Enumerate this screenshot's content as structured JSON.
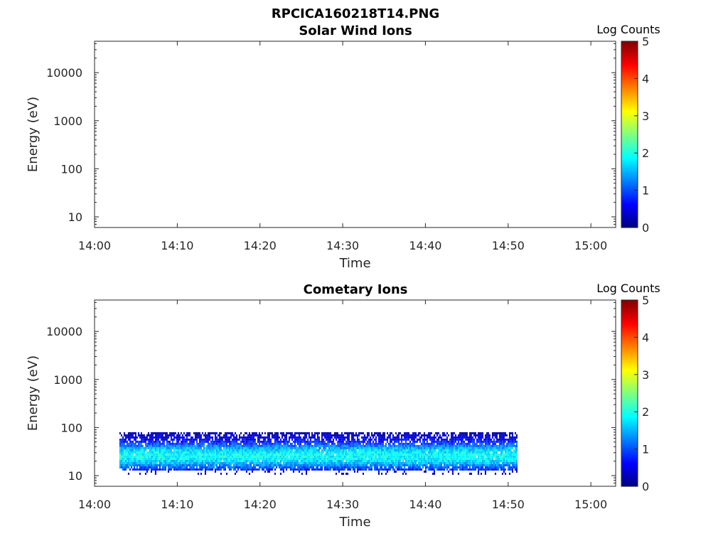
{
  "figure": {
    "title": "RPCICA160218T14.PNG"
  },
  "chart_data": [
    {
      "type": "heatmap",
      "title": "Solar Wind Ions",
      "xlabel": "Time",
      "ylabel": "Energy (eV)",
      "xlim": [
        "14:00",
        "15:03"
      ],
      "xticks": [
        "14:00",
        "14:10",
        "14:20",
        "14:30",
        "14:40",
        "14:50",
        "15:00"
      ],
      "yscale": "log",
      "ylim": [
        6,
        45000
      ],
      "yticks": [
        "10",
        "100",
        "1000",
        "10000"
      ],
      "colorbar": {
        "label": "Log Counts",
        "range": [
          0,
          5
        ],
        "ticks": [
          "0",
          "1",
          "2",
          "3",
          "4",
          "5"
        ],
        "colormap": "jet"
      },
      "data": []
    },
    {
      "type": "heatmap",
      "title": "Cometary Ions",
      "xlabel": "Time",
      "ylabel": "Energy (eV)",
      "xlim": [
        "14:00",
        "15:03"
      ],
      "xticks": [
        "14:00",
        "14:10",
        "14:20",
        "14:30",
        "14:40",
        "14:50",
        "15:00"
      ],
      "yscale": "log",
      "ylim": [
        6,
        45000
      ],
      "yticks": [
        "10",
        "100",
        "1000",
        "10000"
      ],
      "colorbar": {
        "label": "Log Counts",
        "range": [
          0,
          5
        ],
        "ticks": [
          "0",
          "1",
          "2",
          "3",
          "4",
          "5"
        ],
        "colormap": "jet"
      },
      "data": {
        "time_range": [
          "14:03",
          "14:51"
        ],
        "energy_range_ev": [
          13,
          80
        ],
        "peak_energy_ev": 27,
        "peak_log_counts": 2.0,
        "typical_log_counts": 1.0
      }
    }
  ]
}
